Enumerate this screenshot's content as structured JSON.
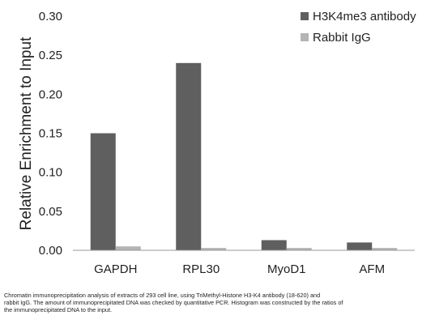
{
  "chart_data": {
    "type": "bar",
    "categories": [
      "GAPDH",
      "RPL30",
      "MyoD1",
      "AFM"
    ],
    "series": [
      {
        "name": "H3K4me3 antibody",
        "values": [
          0.15,
          0.24,
          0.013,
          0.01
        ],
        "color": "#5f5f5f"
      },
      {
        "name": "Rabbit IgG",
        "values": [
          0.005,
          0.003,
          0.003,
          0.003
        ],
        "color": "#b4b4b4"
      }
    ],
    "ylabel": "Relative Enrichment to Input",
    "ylim": [
      0,
      0.3
    ],
    "yticks": [
      "0.00",
      "0.05",
      "0.10",
      "0.15",
      "0.20",
      "0.25",
      "0.30"
    ],
    "grid": false,
    "legend_position": "top-right"
  },
  "caption": [
    "Chromatin immunoprecipitation analysis of extracts of 293 cell line, using TriMethyl-Histone H3-K4 antibody (18-620) and",
    "rabbit IgG. The amount of immunoprecipitated DNA was checked by quantitative PCR. Histogram was constructed by the ratios of",
    "the immunoprecipitated DNA to the input."
  ]
}
